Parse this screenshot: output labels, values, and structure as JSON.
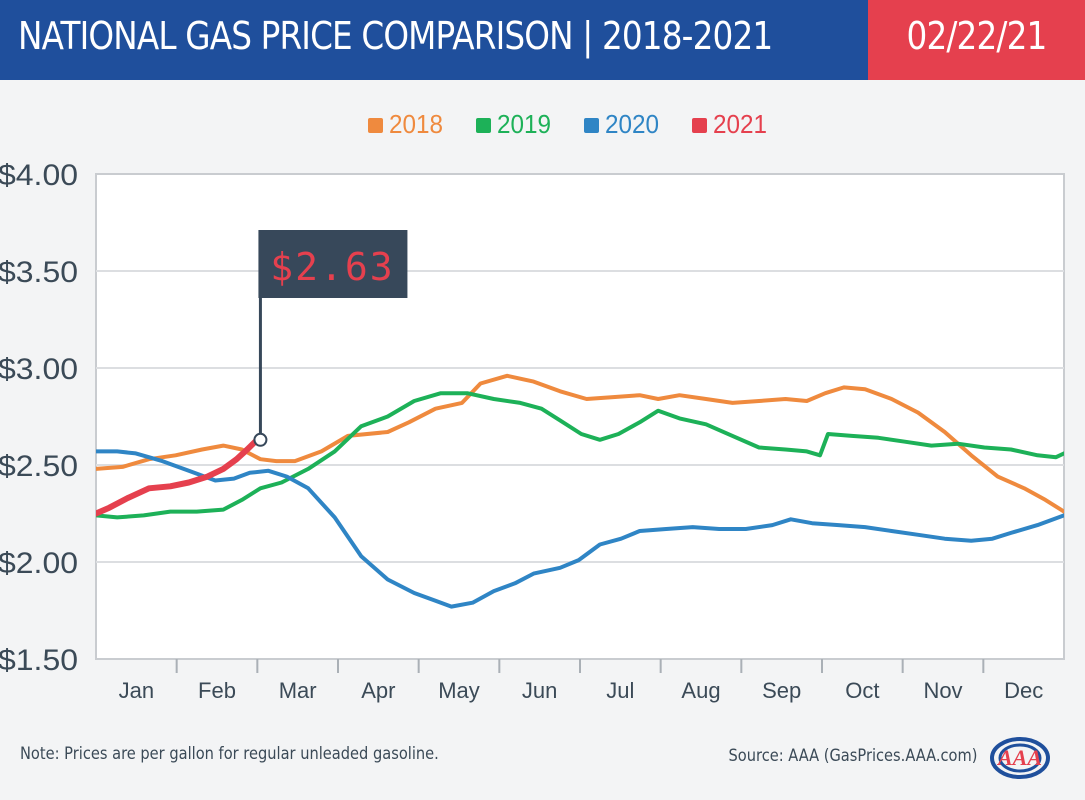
{
  "header": {
    "title": "NATIONAL GAS PRICE COMPARISON | 2018-2021",
    "date": "02/22/21"
  },
  "callout": {
    "label": "$2.63"
  },
  "footer": {
    "note": "Note: Prices are per gallon for regular unleaded gasoline.",
    "source": "Source: AAA (GasPrices.AAA.com)",
    "logo_text": "AAA"
  },
  "colors": {
    "header_bg": "#1f4f9c",
    "date_bg": "#e5404e",
    "callout_bg": "#37485a",
    "callout_text": "#e5404e"
  },
  "chart_data": {
    "type": "line",
    "title": "NATIONAL GAS PRICE COMPARISON | 2018-2021",
    "xlabel": "",
    "ylabel": "",
    "x_unit": "day of year",
    "xlim": [
      0,
      365
    ],
    "ylim": [
      1.5,
      4.0
    ],
    "y_ticks": [
      1.5,
      2.0,
      2.5,
      3.0,
      3.5,
      4.0
    ],
    "y_tick_labels": [
      "$1.50",
      "$2.00",
      "$2.50",
      "$3.00",
      "$3.50",
      "$4.00"
    ],
    "x_categories": [
      "Jan",
      "Feb",
      "Mar",
      "Apr",
      "May",
      "Jun",
      "Jul",
      "Aug",
      "Sep",
      "Oct",
      "Nov",
      "Dec"
    ],
    "grid": "horizontal",
    "legend": "top-center",
    "series": [
      {
        "name": "2018",
        "color": "#ef8a3e",
        "points": [
          [
            0,
            2.48
          ],
          [
            10,
            2.49
          ],
          [
            20,
            2.53
          ],
          [
            30,
            2.55
          ],
          [
            40,
            2.58
          ],
          [
            48,
            2.6
          ],
          [
            55,
            2.58
          ],
          [
            62,
            2.53
          ],
          [
            68,
            2.52
          ],
          [
            75,
            2.52
          ],
          [
            85,
            2.57
          ],
          [
            95,
            2.65
          ],
          [
            110,
            2.67
          ],
          [
            118,
            2.72
          ],
          [
            128,
            2.79
          ],
          [
            138,
            2.82
          ],
          [
            145,
            2.92
          ],
          [
            155,
            2.96
          ],
          [
            165,
            2.93
          ],
          [
            175,
            2.88
          ],
          [
            185,
            2.84
          ],
          [
            195,
            2.85
          ],
          [
            205,
            2.86
          ],
          [
            212,
            2.84
          ],
          [
            220,
            2.86
          ],
          [
            230,
            2.84
          ],
          [
            240,
            2.82
          ],
          [
            250,
            2.83
          ],
          [
            260,
            2.84
          ],
          [
            268,
            2.83
          ],
          [
            275,
            2.87
          ],
          [
            282,
            2.9
          ],
          [
            290,
            2.89
          ],
          [
            300,
            2.84
          ],
          [
            310,
            2.77
          ],
          [
            320,
            2.67
          ],
          [
            330,
            2.55
          ],
          [
            340,
            2.44
          ],
          [
            350,
            2.38
          ],
          [
            358,
            2.32
          ],
          [
            365,
            2.26
          ]
        ]
      },
      {
        "name": "2019",
        "color": "#1db158",
        "points": [
          [
            0,
            2.24
          ],
          [
            8,
            2.23
          ],
          [
            18,
            2.24
          ],
          [
            28,
            2.26
          ],
          [
            38,
            2.26
          ],
          [
            48,
            2.27
          ],
          [
            55,
            2.32
          ],
          [
            62,
            2.38
          ],
          [
            70,
            2.41
          ],
          [
            80,
            2.48
          ],
          [
            90,
            2.57
          ],
          [
            100,
            2.7
          ],
          [
            110,
            2.75
          ],
          [
            120,
            2.83
          ],
          [
            130,
            2.87
          ],
          [
            140,
            2.87
          ],
          [
            150,
            2.84
          ],
          [
            160,
            2.82
          ],
          [
            168,
            2.79
          ],
          [
            175,
            2.73
          ],
          [
            183,
            2.66
          ],
          [
            190,
            2.63
          ],
          [
            197,
            2.66
          ],
          [
            205,
            2.72
          ],
          [
            212,
            2.78
          ],
          [
            220,
            2.74
          ],
          [
            230,
            2.71
          ],
          [
            240,
            2.65
          ],
          [
            250,
            2.59
          ],
          [
            260,
            2.58
          ],
          [
            268,
            2.57
          ],
          [
            273,
            2.55
          ],
          [
            276,
            2.66
          ],
          [
            285,
            2.65
          ],
          [
            295,
            2.64
          ],
          [
            305,
            2.62
          ],
          [
            315,
            2.6
          ],
          [
            325,
            2.61
          ],
          [
            335,
            2.59
          ],
          [
            345,
            2.58
          ],
          [
            355,
            2.55
          ],
          [
            362,
            2.54
          ],
          [
            365,
            2.56
          ]
        ]
      },
      {
        "name": "2020",
        "color": "#2f85c5",
        "points": [
          [
            0,
            2.57
          ],
          [
            8,
            2.57
          ],
          [
            15,
            2.56
          ],
          [
            25,
            2.52
          ],
          [
            35,
            2.47
          ],
          [
            45,
            2.42
          ],
          [
            52,
            2.43
          ],
          [
            58,
            2.46
          ],
          [
            65,
            2.47
          ],
          [
            72,
            2.44
          ],
          [
            80,
            2.38
          ],
          [
            90,
            2.23
          ],
          [
            100,
            2.03
          ],
          [
            110,
            1.91
          ],
          [
            120,
            1.84
          ],
          [
            128,
            1.8
          ],
          [
            134,
            1.77
          ],
          [
            142,
            1.79
          ],
          [
            150,
            1.85
          ],
          [
            158,
            1.89
          ],
          [
            165,
            1.94
          ],
          [
            175,
            1.97
          ],
          [
            182,
            2.01
          ],
          [
            190,
            2.09
          ],
          [
            198,
            2.12
          ],
          [
            205,
            2.16
          ],
          [
            215,
            2.17
          ],
          [
            225,
            2.18
          ],
          [
            235,
            2.17
          ],
          [
            245,
            2.17
          ],
          [
            255,
            2.19
          ],
          [
            262,
            2.22
          ],
          [
            270,
            2.2
          ],
          [
            280,
            2.19
          ],
          [
            290,
            2.18
          ],
          [
            300,
            2.16
          ],
          [
            310,
            2.14
          ],
          [
            320,
            2.12
          ],
          [
            330,
            2.11
          ],
          [
            338,
            2.12
          ],
          [
            345,
            2.15
          ],
          [
            355,
            2.19
          ],
          [
            365,
            2.24
          ]
        ]
      },
      {
        "name": "2021",
        "color": "#e5404e",
        "points": [
          [
            0,
            2.25
          ],
          [
            5,
            2.28
          ],
          [
            12,
            2.33
          ],
          [
            20,
            2.38
          ],
          [
            28,
            2.39
          ],
          [
            35,
            2.41
          ],
          [
            42,
            2.44
          ],
          [
            48,
            2.48
          ],
          [
            53,
            2.53
          ],
          [
            57,
            2.58
          ],
          [
            60,
            2.62
          ],
          [
            62,
            2.63
          ]
        ]
      }
    ]
  }
}
